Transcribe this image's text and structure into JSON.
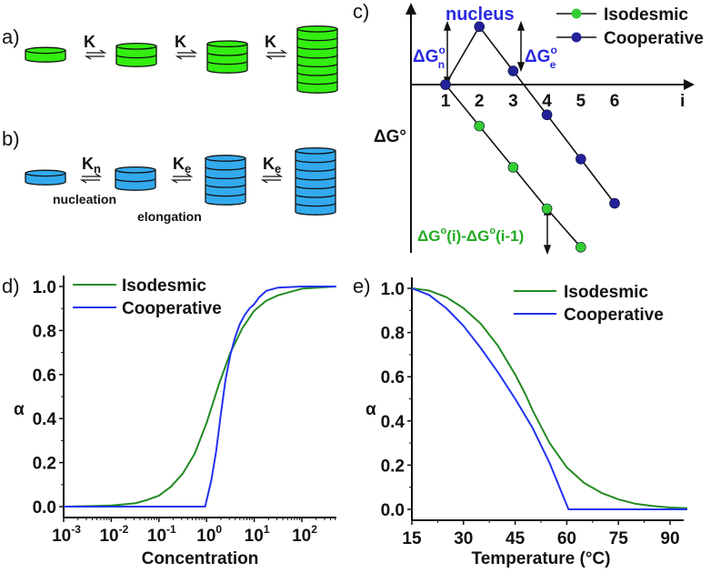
{
  "panels": {
    "a": "a)",
    "b": "b)",
    "c": "c)",
    "d": "d)",
    "e": "e)"
  },
  "diagram_a": {
    "stack_sizes": [
      1,
      2,
      3,
      7
    ],
    "constants": [
      "K",
      "K",
      "K"
    ],
    "color": "#33ee11"
  },
  "diagram_b": {
    "stack_sizes": [
      1,
      2,
      5,
      7
    ],
    "constants": [
      {
        "main": "K",
        "sub": "n"
      },
      {
        "main": "K",
        "sub": "e"
      },
      {
        "main": "K",
        "sub": "e"
      }
    ],
    "nucleation": "nucleation",
    "elongation": "elongation",
    "color": "#33aaee"
  },
  "chart_data": [
    {
      "type": "line",
      "panel": "c",
      "xlabel": "i",
      "ylabel": "ΔG°",
      "ylabel_main": "ΔG",
      "ylabel_sup": "o",
      "x_ticks": [
        "1",
        "2",
        "3",
        "4",
        "5",
        "6"
      ],
      "series": [
        {
          "name": "Isodesmic",
          "color": "#22bb22",
          "x": [
            1,
            2,
            3,
            4,
            5
          ],
          "y": [
            0,
            -1,
            -2,
            -3,
            -3.93
          ]
        },
        {
          "name": "Cooperative",
          "color": "#1a1a99",
          "x": [
            1,
            2,
            3,
            4,
            5,
            6
          ],
          "y": [
            0,
            1.4,
            0.33,
            -0.73,
            -1.8,
            -2.87
          ]
        }
      ],
      "annotations": {
        "nucleus": "nucleus",
        "dGn": {
          "main": "ΔG",
          "sup": "o",
          "sub": "n"
        },
        "dGe": {
          "main": "ΔG",
          "sup": "o",
          "sub": "e"
        },
        "step": {
          "p1": "ΔG",
          "s1": "o",
          "p2": "(i)-ΔG",
          "s2": "o",
          "p3": "(i-1)"
        }
      },
      "legend": [
        "Isodesmic",
        "Cooperative"
      ],
      "legend_position": "top-right"
    },
    {
      "type": "line",
      "panel": "d",
      "xlabel": "Concentration",
      "ylabel": "α",
      "xscale": "log",
      "xlim_log10": [
        -3,
        2.72
      ],
      "ylim": [
        0,
        1
      ],
      "x_ticks": [
        {
          "base": "10",
          "exp": "-3"
        },
        {
          "base": "10",
          "exp": "-2"
        },
        {
          "base": "10",
          "exp": "-1"
        },
        {
          "base": "10",
          "exp": "0"
        },
        {
          "base": "10",
          "exp": "1"
        },
        {
          "base": "10",
          "exp": "2"
        }
      ],
      "y_ticks": [
        "0.0",
        "0.2",
        "0.4",
        "0.6",
        "0.8",
        "1.0"
      ],
      "series": [
        {
          "name": "Isodesmic",
          "color": "#228b22",
          "log10_x": [
            -3,
            -2.5,
            -2,
            -1.5,
            -1.25,
            -1,
            -0.75,
            -0.5,
            -0.25,
            0,
            0.25,
            0.5,
            0.75,
            1,
            1.25,
            1.5,
            2,
            2.72
          ],
          "y": [
            0,
            0.002,
            0.005,
            0.015,
            0.03,
            0.05,
            0.09,
            0.15,
            0.24,
            0.38,
            0.55,
            0.7,
            0.81,
            0.89,
            0.935,
            0.96,
            0.99,
            1.0
          ]
        },
        {
          "name": "Cooperative",
          "color": "#2233ee",
          "log10_x": [
            -3,
            -0.03,
            0.1,
            0.2,
            0.3,
            0.4,
            0.5,
            0.6,
            0.7,
            0.8,
            0.9,
            1.0,
            1.1,
            1.25,
            1.5,
            2,
            2.72
          ],
          "y": [
            0,
            0,
            0.12,
            0.25,
            0.42,
            0.58,
            0.69,
            0.77,
            0.83,
            0.87,
            0.9,
            0.92,
            0.95,
            0.98,
            0.995,
            1.0,
            1.0
          ]
        }
      ],
      "legend": [
        "Isodesmic",
        "Cooperative"
      ],
      "legend_position": "top-left"
    },
    {
      "type": "line",
      "panel": "e",
      "xlabel": "Temperature (°C)",
      "xlabel_parts": {
        "p1": "Temperature (",
        "sup": "o",
        "p2": "C)"
      },
      "ylabel": "α",
      "xlim": [
        15,
        95
      ],
      "ylim": [
        0,
        1
      ],
      "x_ticks": [
        "15",
        "30",
        "45",
        "60",
        "75",
        "90"
      ],
      "y_ticks": [
        "0.0",
        "0.2",
        "0.4",
        "0.6",
        "0.8",
        "1.0"
      ],
      "series": [
        {
          "name": "Isodesmic",
          "color": "#228b22",
          "x": [
            15,
            20,
            25,
            30,
            35,
            40,
            45,
            48,
            50,
            55,
            60,
            65,
            70,
            75,
            80,
            85,
            90,
            95
          ],
          "y": [
            1,
            0.99,
            0.96,
            0.91,
            0.84,
            0.74,
            0.61,
            0.52,
            0.45,
            0.3,
            0.19,
            0.12,
            0.075,
            0.045,
            0.025,
            0.015,
            0.008,
            0.005
          ]
        },
        {
          "name": "Cooperative",
          "color": "#2233ee",
          "x": [
            15,
            20,
            25,
            30,
            35,
            40,
            45,
            50,
            55,
            60.5,
            95
          ],
          "y": [
            1,
            0.97,
            0.91,
            0.83,
            0.73,
            0.62,
            0.5,
            0.37,
            0.21,
            0,
            0
          ]
        }
      ],
      "legend": [
        "Isodesmic",
        "Cooperative"
      ],
      "legend_position": "top-right"
    }
  ]
}
